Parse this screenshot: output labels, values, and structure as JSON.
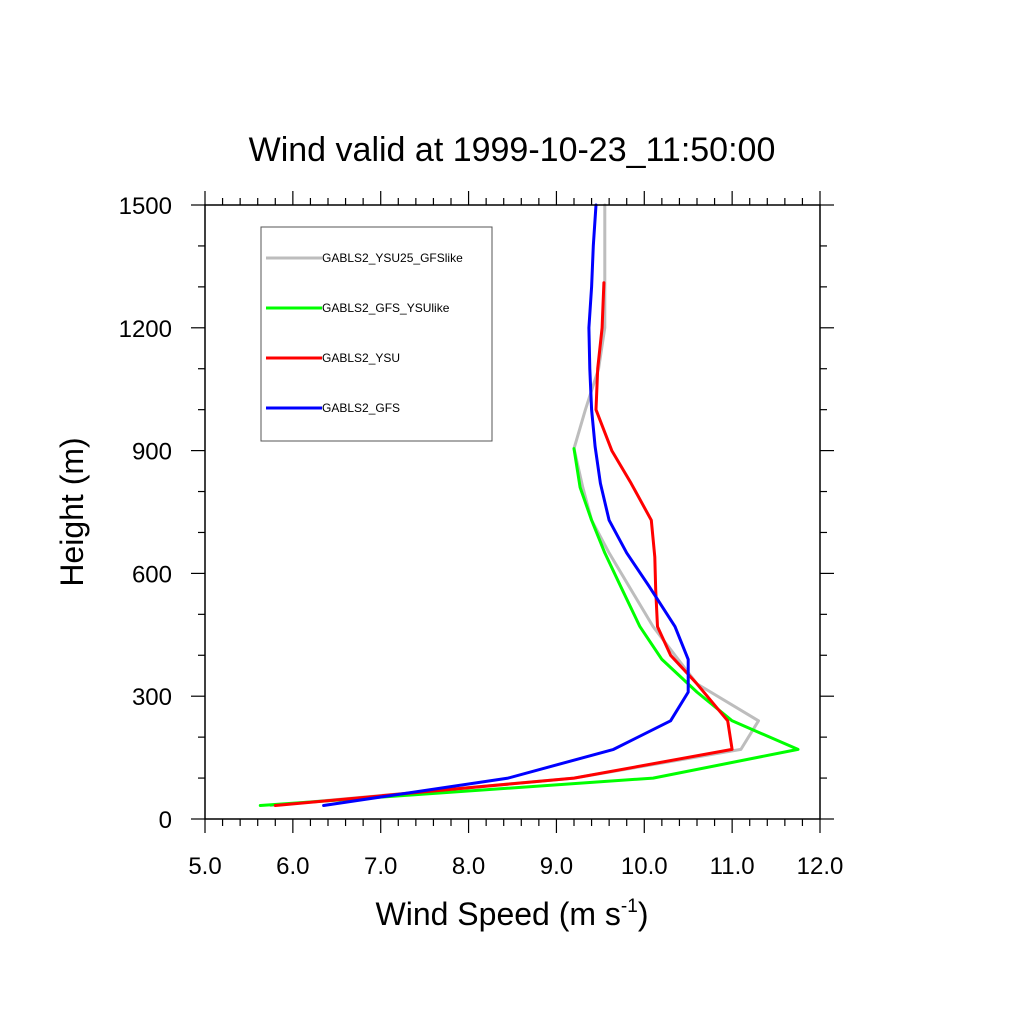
{
  "chart_data": {
    "type": "line",
    "title": "Wind valid at 1999-10-23_11:50:00",
    "xlabel": "Wind Speed (m s",
    "xlabel_sup": "-1",
    "xlabel_end": ")",
    "ylabel": "Height (m)",
    "xlim": [
      5.0,
      12.0
    ],
    "ylim": [
      0,
      1500
    ],
    "x_ticks": [
      5.0,
      6.0,
      7.0,
      8.0,
      9.0,
      10.0,
      11.0,
      12.0
    ],
    "x_tick_labels": [
      "5.0",
      "6.0",
      "7.0",
      "8.0",
      "9.0",
      "10.0",
      "11.0",
      "12.0"
    ],
    "y_ticks": [
      0,
      300,
      600,
      900,
      1200,
      1500
    ],
    "y_tick_labels": [
      "0",
      "300",
      "600",
      "900",
      "1200",
      "1500"
    ],
    "grid": false,
    "legend_position": "top-left",
    "series": [
      {
        "name": "GABLS2_YSU25_GFSlike",
        "color": "#bdbdbd",
        "points": [
          [
            5.75,
            33
          ],
          [
            9.2,
            100
          ],
          [
            11.1,
            170
          ],
          [
            11.3,
            240
          ],
          [
            10.6,
            330
          ],
          [
            10.35,
            400
          ],
          [
            10.1,
            470
          ],
          [
            9.85,
            560
          ],
          [
            9.6,
            650
          ],
          [
            9.4,
            730
          ],
          [
            9.3,
            810
          ],
          [
            9.2,
            905
          ],
          [
            9.33,
            1000
          ],
          [
            9.48,
            1100
          ],
          [
            9.55,
            1200
          ],
          [
            9.55,
            1300
          ],
          [
            9.55,
            1400
          ],
          [
            9.55,
            1500
          ]
        ]
      },
      {
        "name": "GABLS2_GFS_YSUlike",
        "color": "#00ff00",
        "points": [
          [
            5.63,
            33
          ],
          [
            10.1,
            100
          ],
          [
            11.75,
            170
          ],
          [
            11.0,
            240
          ],
          [
            10.6,
            310
          ],
          [
            10.2,
            390
          ],
          [
            9.95,
            470
          ],
          [
            9.75,
            560
          ],
          [
            9.55,
            650
          ],
          [
            9.4,
            730
          ],
          [
            9.27,
            810
          ],
          [
            9.2,
            905
          ]
        ]
      },
      {
        "name": "GABLS2_YSU",
        "color": "#ff0000",
        "points": [
          [
            5.8,
            33
          ],
          [
            9.2,
            100
          ],
          [
            11.0,
            170
          ],
          [
            10.95,
            240
          ],
          [
            10.6,
            330
          ],
          [
            10.3,
            400
          ],
          [
            10.15,
            470
          ],
          [
            10.13,
            560
          ],
          [
            10.12,
            640
          ],
          [
            10.08,
            730
          ],
          [
            9.85,
            820
          ],
          [
            9.63,
            900
          ],
          [
            9.45,
            1000
          ],
          [
            9.47,
            1100
          ],
          [
            9.52,
            1200
          ],
          [
            9.54,
            1310
          ]
        ]
      },
      {
        "name": "GABLS2_GFS",
        "color": "#0000ff",
        "points": [
          [
            6.35,
            33
          ],
          [
            8.45,
            100
          ],
          [
            9.65,
            170
          ],
          [
            10.3,
            240
          ],
          [
            10.5,
            310
          ],
          [
            10.5,
            390
          ],
          [
            10.35,
            470
          ],
          [
            10.05,
            570
          ],
          [
            9.8,
            650
          ],
          [
            9.6,
            730
          ],
          [
            9.5,
            820
          ],
          [
            9.44,
            910
          ],
          [
            9.4,
            1000
          ],
          [
            9.38,
            1100
          ],
          [
            9.37,
            1200
          ],
          [
            9.4,
            1300
          ],
          [
            9.42,
            1400
          ],
          [
            9.45,
            1500
          ]
        ]
      }
    ]
  }
}
